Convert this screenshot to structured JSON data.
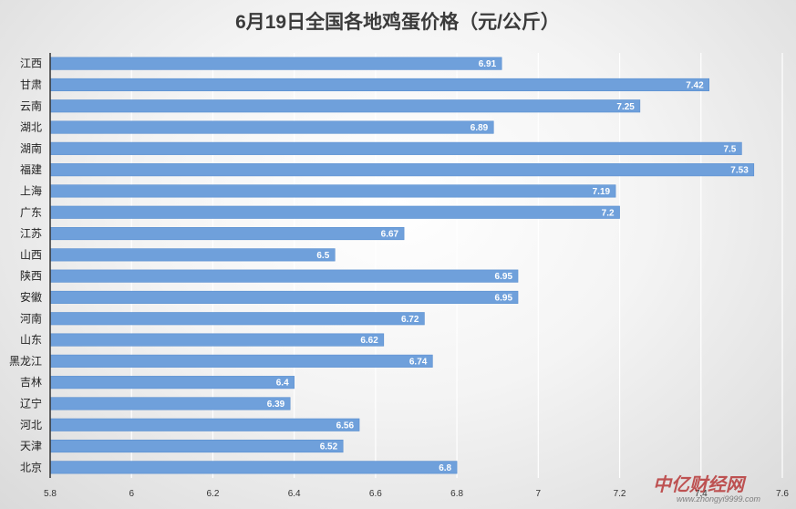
{
  "chart_data": {
    "type": "bar",
    "orientation": "horizontal",
    "title": "6月19日全国各地鸡蛋价格（元/公斤）",
    "categories": [
      "江西",
      "甘肃",
      "云南",
      "湖北",
      "湖南",
      "福建",
      "上海",
      "广东",
      "江苏",
      "山西",
      "陕西",
      "安徽",
      "河南",
      "山东",
      "黑龙江",
      "吉林",
      "辽宁",
      "河北",
      "天津",
      "北京"
    ],
    "values": [
      6.91,
      7.42,
      7.25,
      6.89,
      7.5,
      7.53,
      7.19,
      7.2,
      6.67,
      6.5,
      6.95,
      6.95,
      6.72,
      6.62,
      6.74,
      6.4,
      6.39,
      6.56,
      6.52,
      6.8
    ],
    "value_labels": [
      "6.91",
      "7.42",
      "7.25",
      "6.89",
      "7.5",
      "7.53",
      "7.19",
      "7.2",
      "6.67",
      "6.5",
      "6.95",
      "6.95",
      "6.72",
      "6.62",
      "6.74",
      "6.4",
      "6.39",
      "6.56",
      "6.52",
      "6.8"
    ],
    "xlim": [
      5.8,
      7.6
    ],
    "x_ticks": [
      "5.8",
      "6",
      "6.2",
      "6.4",
      "6.6",
      "6.8",
      "7",
      "7.2",
      "7.4",
      "7.6"
    ],
    "xlabel": "",
    "ylabel": "",
    "grid": "vertical",
    "legend": "none",
    "colors": {
      "bar": "#6fa0db",
      "bar_edge": "#5a8fd0",
      "grid": "#ffffff",
      "axis": "#333333"
    }
  },
  "watermark": {
    "brand": "中亿财经网",
    "url": "www.zhongyi9999.com"
  }
}
